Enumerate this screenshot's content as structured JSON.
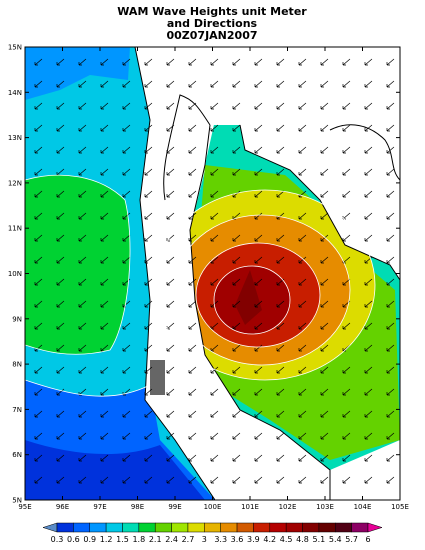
{
  "title": [
    "WAM Wave Heights unit Meter",
    "and Directions",
    "00Z07JAN2007"
  ],
  "lat_labels": [
    "15N",
    "14N",
    "13N",
    "12N",
    "11N",
    "10N",
    "9N",
    "8N",
    "7N",
    "6N",
    "5N"
  ],
  "lon_labels": [
    "95E",
    "96E",
    "97E",
    "98E",
    "99E",
    "100E",
    "101E",
    "102E",
    "103E",
    "104E",
    "105E"
  ],
  "colorbar": {
    "labels": [
      "0.3",
      "0.6",
      "0.9",
      "1.2",
      "1.5",
      "1.8",
      "2.1",
      "2.4",
      "2.7",
      "3",
      "3.3",
      "3.6",
      "3.9",
      "4.2",
      "4.5",
      "4.8",
      "5.1",
      "5.4",
      "5.7",
      "6"
    ],
    "colors": [
      "#5a8cc8",
      "#0032dc",
      "#0064ff",
      "#0096ff",
      "#00c8e6",
      "#00dcb4",
      "#00d232",
      "#64d200",
      "#a0e600",
      "#dcdc00",
      "#e6b400",
      "#e68c00",
      "#d25a00",
      "#c81e00",
      "#b40000",
      "#a00000",
      "#820000",
      "#640000",
      "#500014",
      "#8c0064",
      "#e60096"
    ]
  }
}
